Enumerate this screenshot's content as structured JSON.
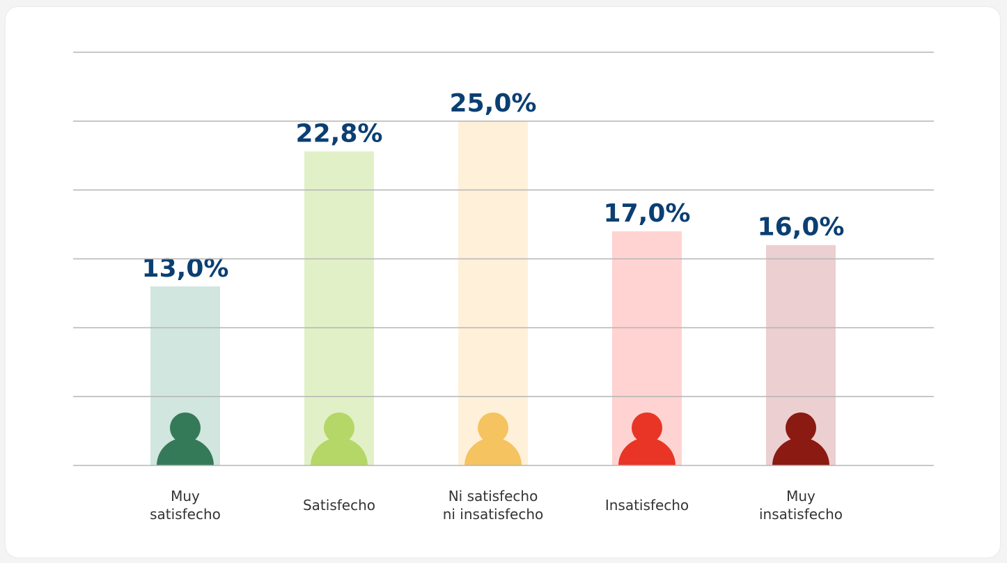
{
  "chart_data": {
    "type": "bar",
    "categories": [
      "Muy\nsatisfecho",
      "Satisfecho",
      "Ni satisfecho\nni insatisfecho",
      "Insatisfecho",
      "Muy\ninsatisfecho"
    ],
    "values": [
      13.0,
      22.8,
      25.0,
      17.0,
      16.0
    ],
    "value_labels": [
      "13,0%",
      "22,8%",
      "25,0%",
      "17,0%",
      "16,0%"
    ],
    "colors": [
      "#d1e6df",
      "#e2f0c8",
      "#fff1d9",
      "#ffd3d1",
      "#eccfd1"
    ],
    "icon_colors": [
      "#357a58",
      "#b5d767",
      "#f5c35f",
      "#e83525",
      "#8a1a12"
    ],
    "ylim": [
      0,
      30
    ],
    "yticks": [
      0,
      5,
      10,
      15,
      20,
      25,
      30
    ],
    "grid": true
  }
}
